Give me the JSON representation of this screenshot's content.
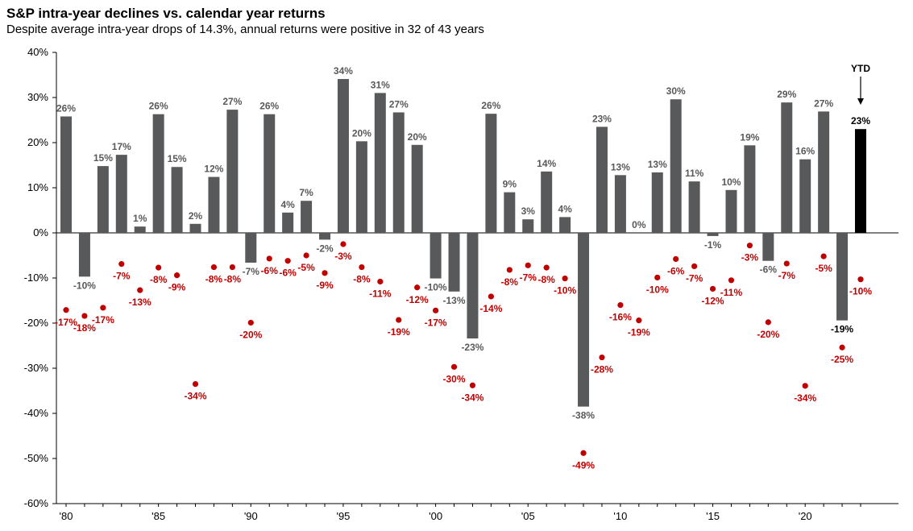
{
  "chart_data": {
    "type": "bar",
    "title": "S&P intra-year declines vs. calendar year returns",
    "subtitle": "Despite average intra-year drops of 14.3%, annual returns were positive in 32 of 43 years",
    "ylim": [
      -60,
      40
    ],
    "yticks": [
      "40%",
      "30%",
      "20%",
      "10%",
      "0%",
      "-10%",
      "-20%",
      "-30%",
      "-40%",
      "-50%",
      "-60%"
    ],
    "ytick_values": [
      40,
      30,
      20,
      10,
      0,
      -10,
      -20,
      -30,
      -40,
      -50,
      -60
    ],
    "x": [
      1980,
      1981,
      1982,
      1983,
      1984,
      1985,
      1986,
      1987,
      1988,
      1989,
      1990,
      1991,
      1992,
      1993,
      1994,
      1995,
      1996,
      1997,
      1998,
      1999,
      2000,
      2001,
      2002,
      2003,
      2004,
      2005,
      2006,
      2007,
      2008,
      2009,
      2010,
      2011,
      2012,
      2013,
      2014,
      2015,
      2016,
      2017,
      2018,
      2019,
      2020,
      2021,
      2022,
      2023
    ],
    "xtick_labels": [
      {
        "x": 1980,
        "label": "'80"
      },
      {
        "x": 1985,
        "label": "'85"
      },
      {
        "x": 1990,
        "label": "'90"
      },
      {
        "x": 1995,
        "label": "'95"
      },
      {
        "x": 2000,
        "label": "'00"
      },
      {
        "x": 2005,
        "label": "'05"
      },
      {
        "x": 2010,
        "label": "'10"
      },
      {
        "x": 2015,
        "label": "'15"
      },
      {
        "x": 2020,
        "label": "'20"
      }
    ],
    "series": [
      {
        "kind": "bar",
        "values": [
          25.8,
          -9.7,
          14.8,
          17.3,
          1.4,
          26.3,
          14.6,
          2.0,
          12.4,
          27.3,
          -6.6,
          26.3,
          4.5,
          7.1,
          -1.5,
          34.1,
          20.3,
          31.0,
          26.7,
          19.5,
          -10.1,
          -13.0,
          -23.4,
          26.4,
          9.0,
          3.0,
          13.6,
          3.5,
          -38.5,
          23.5,
          12.8,
          0.0,
          13.4,
          29.6,
          11.4,
          -0.7,
          9.5,
          19.4,
          -6.2,
          28.9,
          16.3,
          26.9,
          -19.4,
          23.0
        ],
        "labels": [
          "26%",
          "-10%",
          "15%",
          "17%",
          "1%",
          "26%",
          "15%",
          "2%",
          "12%",
          "27%",
          "-7%",
          "26%",
          "4%",
          "7%",
          "-2%",
          "34%",
          "20%",
          "31%",
          "27%",
          "20%",
          "-10%",
          "-13%",
          "-23%",
          "26%",
          "9%",
          "3%",
          "14%",
          "4%",
          "-38%",
          "23%",
          "13%",
          "0%",
          "13%",
          "30%",
          "11%",
          "-1%",
          "10%",
          "19%",
          "-6%",
          "29%",
          "16%",
          "27%",
          "-19%",
          "23%"
        ],
        "color": "#58595b",
        "highlight_color": "#000000",
        "highlight_index": 43
      },
      {
        "kind": "scatter",
        "values": [
          -17.1,
          -18.4,
          -16.6,
          -6.9,
          -12.7,
          -7.7,
          -9.4,
          -33.5,
          -7.6,
          -7.6,
          -19.9,
          -5.7,
          -6.2,
          -5.0,
          -8.9,
          -2.5,
          -7.6,
          -10.8,
          -19.3,
          -12.1,
          -17.2,
          -29.7,
          -33.8,
          -14.1,
          -8.2,
          -7.2,
          -7.7,
          -10.1,
          -48.8,
          -27.6,
          -16.0,
          -19.4,
          -9.9,
          -5.8,
          -7.4,
          -12.4,
          -10.5,
          -2.8,
          -19.8,
          -6.8,
          -33.9,
          -5.2,
          -25.4,
          -10.3
        ],
        "labels": [
          "-17%",
          "-18%",
          "-17%",
          "-7%",
          "-13%",
          "-8%",
          "-9%",
          "-34%",
          "-8%",
          "-8%",
          "-20%",
          "-6%",
          "-6%",
          "-5%",
          "-9%",
          "-3%",
          "-8%",
          "-11%",
          "-19%",
          "-12%",
          "-17%",
          "-30%",
          "-34%",
          "-14%",
          "-8%",
          "-7%",
          "-8%",
          "-10%",
          "-49%",
          "-28%",
          "-16%",
          "-19%",
          "-10%",
          "-6%",
          "-7%",
          "-12%",
          "-11%",
          "-3%",
          "-20%",
          "-7%",
          "-34%",
          "-5%",
          "-25%",
          "-10%"
        ],
        "color": "#c00000"
      }
    ],
    "annotation": {
      "label": "YTD",
      "x": 2023
    }
  }
}
